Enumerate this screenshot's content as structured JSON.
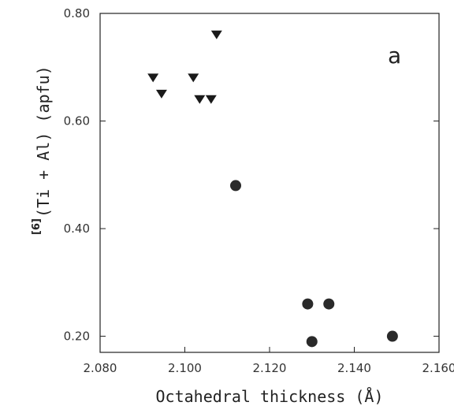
{
  "chart_data": {
    "type": "scatter",
    "panel_label": "a",
    "xlabel": "Octahedral thickness (Å)",
    "ylabel_superscript": "[6]",
    "ylabel": "(Ti + Al) (apfu)",
    "xlim": [
      2.08,
      2.16
    ],
    "ylim": [
      0.17,
      0.8
    ],
    "x_ticks": [
      2.08,
      2.1,
      2.12,
      2.14,
      2.16
    ],
    "x_tick_labels": [
      "2.080",
      "2.100",
      "2.120",
      "2.140",
      "2.160"
    ],
    "y_ticks": [
      0.2,
      0.4,
      0.6,
      0.8
    ],
    "y_tick_labels": [
      "0.20",
      "0.40",
      "0.60",
      "0.80"
    ],
    "grid": false,
    "series": [
      {
        "marker": "triangle-down",
        "color": "#1a1a1a",
        "points": [
          {
            "x": 2.0925,
            "y": 0.68
          },
          {
            "x": 2.0945,
            "y": 0.65
          },
          {
            "x": 2.102,
            "y": 0.68
          },
          {
            "x": 2.1035,
            "y": 0.64
          },
          {
            "x": 2.1062,
            "y": 0.64
          },
          {
            "x": 2.1075,
            "y": 0.76
          }
        ]
      },
      {
        "marker": "circle",
        "color": "#2a2a2a",
        "points": [
          {
            "x": 2.112,
            "y": 0.48
          },
          {
            "x": 2.129,
            "y": 0.26
          },
          {
            "x": 2.13,
            "y": 0.19
          },
          {
            "x": 2.134,
            "y": 0.26
          },
          {
            "x": 2.149,
            "y": 0.2
          }
        ]
      }
    ]
  }
}
